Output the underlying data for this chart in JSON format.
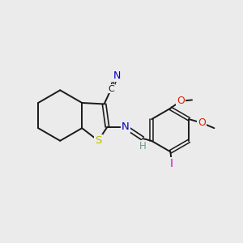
{
  "background_color": "#ebebeb",
  "bond_color": "#1a1a1a",
  "atom_colors": {
    "N": "#0000cc",
    "S": "#bbbb00",
    "O": "#dd2200",
    "I": "#cc00cc",
    "H": "#669999",
    "C": "#1a1a1a"
  },
  "figsize": [
    3.0,
    3.0
  ],
  "dpi": 100
}
